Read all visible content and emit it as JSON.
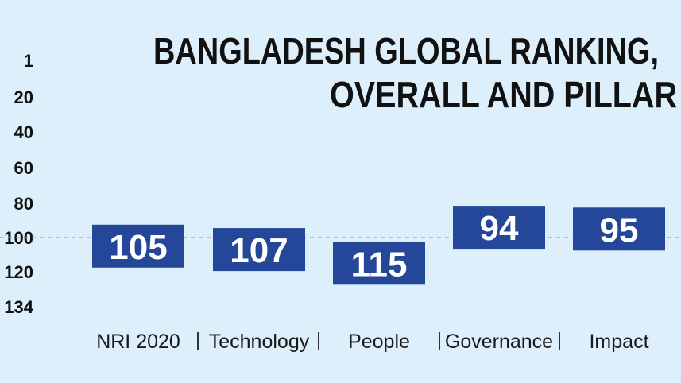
{
  "chart_data": {
    "type": "bar",
    "title_lines": [
      "BANGLADESH GLOBAL RANKING,",
      "OVERALL AND PILLAR"
    ],
    "categories": [
      "NRI 2020",
      "Technology",
      "People",
      "Governance",
      "Impact"
    ],
    "values": [
      105,
      107,
      115,
      94,
      95
    ],
    "yticks": [
      "1",
      "20",
      "40",
      "60",
      "80",
      "100",
      "120",
      "134"
    ],
    "ylim": [
      1,
      134
    ],
    "y_inverted": true,
    "reference_line": 100,
    "grid": false,
    "separator": "|",
    "colors": {
      "background": "#dceffa",
      "bar": "#25479a",
      "bar_text": "#ffffff",
      "reference_line": "#9aa3ad"
    }
  }
}
